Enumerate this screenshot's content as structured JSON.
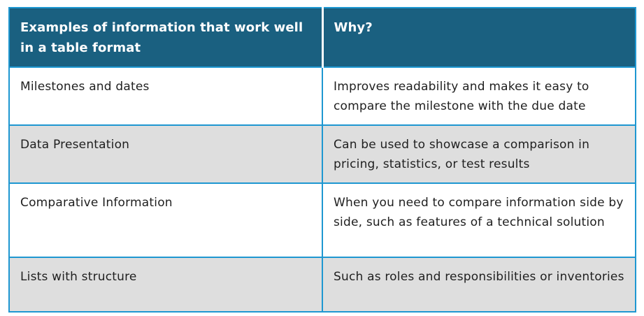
{
  "chart_data": {
    "type": "table",
    "title": "",
    "columns": [
      "Examples of information that work well in a table format",
      "Why?"
    ],
    "rows": [
      [
        "Milestones and dates",
        "Improves readability and makes it easy to compare the milestone with the due date"
      ],
      [
        "Data Presentation",
        "Can be used to showcase a comparison in pricing, statistics, or test results"
      ],
      [
        "Comparative Information",
        "When you need to compare information side by side, such as features of a technical solution"
      ],
      [
        "Lists with structure",
        "Such as roles and responsibilities or inventories"
      ]
    ],
    "layout_hints": {
      "header_position": "top",
      "zebra_striping": true,
      "column_count": 2,
      "row_count": 4
    }
  },
  "style": {
    "header_bg": "#1a6080",
    "header_text_color": "#ffffff",
    "border_color": "#1e97d1",
    "header_divider_color": "#ffffff",
    "row_alt_bg": "#dedede",
    "row_bg": "#ffffff",
    "body_text_color": "#1f1f1f",
    "page_bg": "#ffffff"
  }
}
